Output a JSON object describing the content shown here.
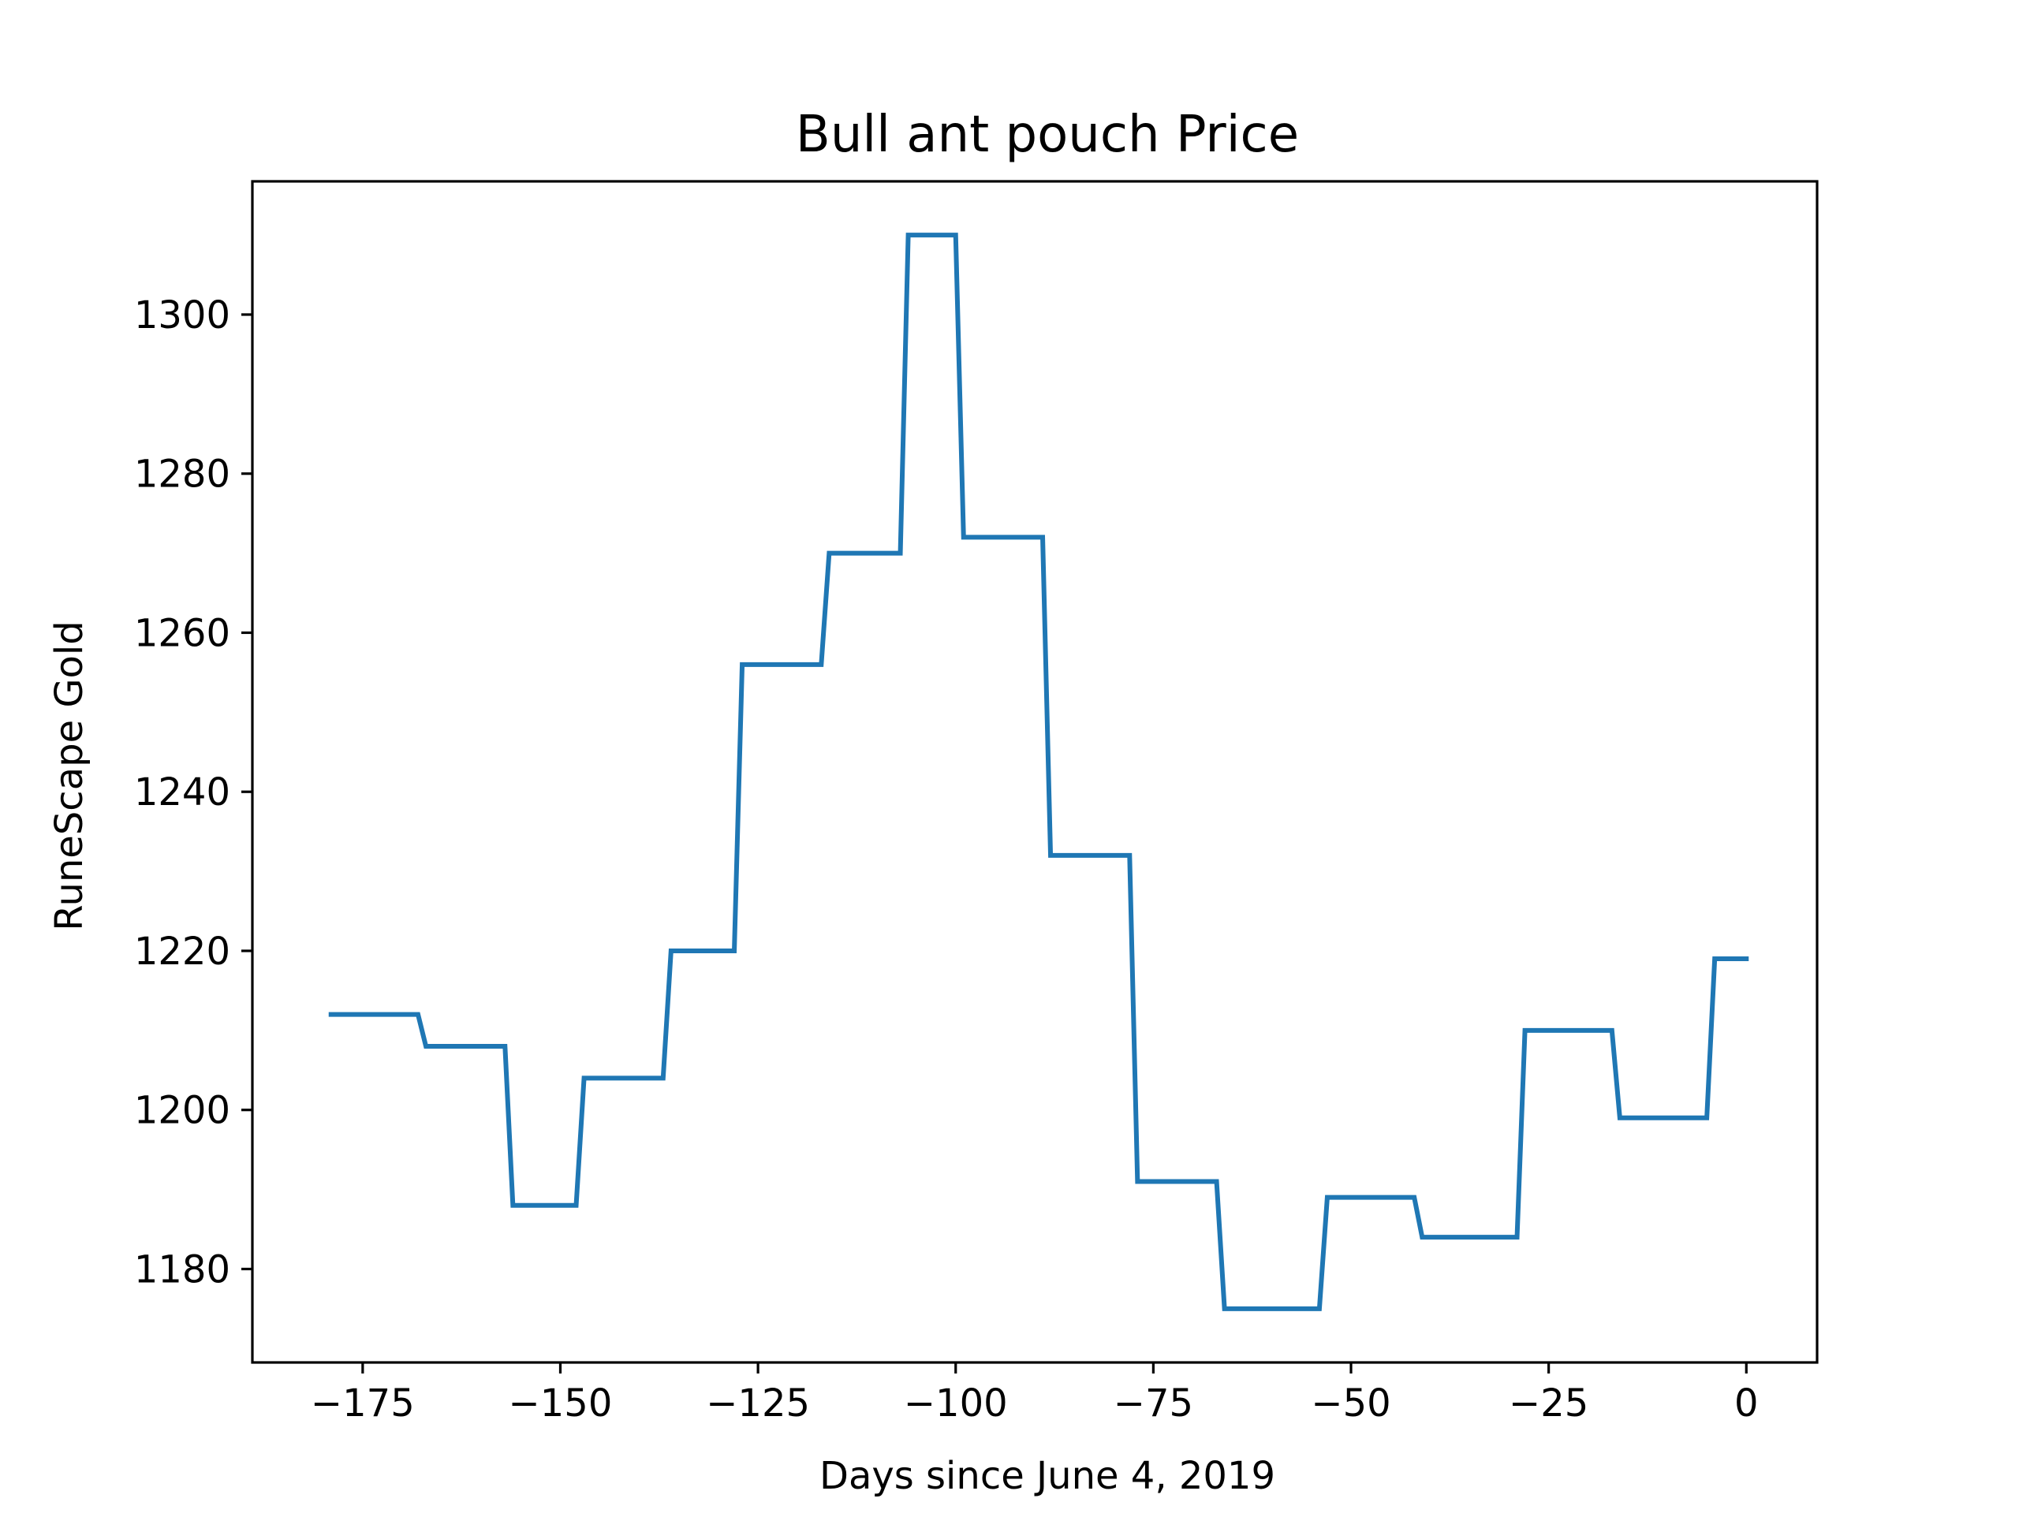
{
  "chart_data": {
    "type": "line",
    "title": "Bull ant pouch Price",
    "xlabel": "Days since June 4, 2019",
    "ylabel": "RuneScape Gold",
    "xlim": [
      -188.95,
      8.95
    ],
    "ylim": [
      1168.25,
      1316.75
    ],
    "xticks": [
      -175,
      -150,
      -125,
      -100,
      -75,
      -50,
      -25,
      0
    ],
    "xtick_labels": [
      "−175",
      "−150",
      "−125",
      "−100",
      "−75",
      "−50",
      "−25",
      "0"
    ],
    "yticks": [
      1180,
      1200,
      1220,
      1240,
      1260,
      1280,
      1300
    ],
    "ytick_labels": [
      "1180",
      "1200",
      "1220",
      "1240",
      "1260",
      "1280",
      "1300"
    ],
    "grid": false,
    "line_color": "#1f77b4",
    "series": [
      {
        "x": [
          -179,
          -168,
          -167,
          -157,
          -156,
          -148,
          -147,
          -137,
          -136,
          -128,
          -127,
          -117,
          -116,
          -107,
          -106,
          -100,
          -99,
          -89,
          -88,
          -78,
          -77,
          -67,
          -66,
          -54,
          -53,
          -42,
          -41,
          -29,
          -28,
          -17,
          -16,
          -5,
          -4,
          0
        ],
        "y": [
          1212,
          1212,
          1208,
          1208,
          1188,
          1188,
          1204,
          1204,
          1220,
          1220,
          1256,
          1256,
          1270,
          1270,
          1310,
          1310,
          1272,
          1272,
          1232,
          1232,
          1191,
          1191,
          1175,
          1175,
          1189,
          1189,
          1184,
          1184,
          1210,
          1210,
          1199,
          1199,
          1219,
          1219
        ]
      }
    ]
  }
}
